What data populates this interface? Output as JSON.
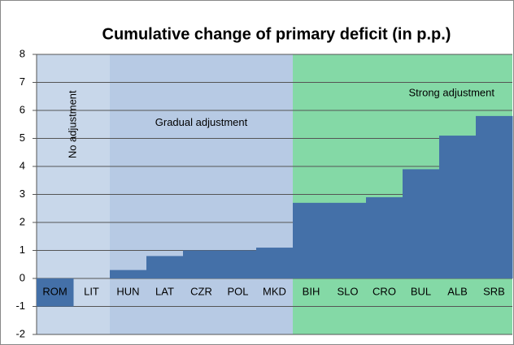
{
  "chart_data": {
    "type": "bar",
    "title": "Cumulative change of primary deficit (in p.p.)",
    "categories": [
      "ROM",
      "LIT",
      "HUN",
      "LAT",
      "CZR",
      "POL",
      "MKD",
      "BIH",
      "SLO",
      "CRO",
      "BUL",
      "ALB",
      "SRB"
    ],
    "values": [
      -1,
      0,
      0.3,
      0.8,
      1.0,
      1.0,
      1.1,
      2.7,
      2.7,
      2.9,
      3.9,
      5.1,
      5.8
    ],
    "color": "#4470a8",
    "ylim": [
      -2,
      8
    ],
    "yticks": [
      -2,
      -1,
      0,
      1,
      2,
      3,
      4,
      5,
      6,
      7,
      8
    ],
    "grid": true,
    "regions": [
      {
        "label": "No adjustment",
        "from": "ROM",
        "to": "LIT",
        "color": "#c8d7ea"
      },
      {
        "label": "Gradual adjustment",
        "from": "HUN",
        "to": "MKD",
        "color": "#b7cae4"
      },
      {
        "label": "Strong adjustment",
        "from": "BIH",
        "to": "SRB",
        "color": "#84d9a6"
      }
    ]
  }
}
